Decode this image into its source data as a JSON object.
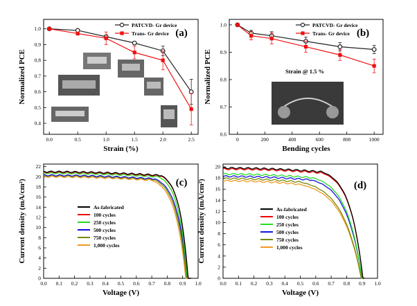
{
  "chart_data": [
    {
      "type": "line",
      "panel_label": "(a)",
      "xlabel": "Strain (%)",
      "ylabel": "Normalized PCE",
      "xlim": [
        -0.1,
        2.62
      ],
      "ylim": [
        0.33,
        1.06
      ],
      "xticks": [
        0.0,
        0.5,
        1.0,
        1.5,
        2.0,
        2.5
      ],
      "yticks": [
        0.4,
        0.5,
        0.6,
        0.7,
        0.8,
        0.9,
        1.0
      ],
      "x": [
        0.0,
        0.5,
        1.0,
        1.5,
        2.0,
        2.5
      ],
      "series": [
        {
          "name": "PATCVD- Gr device",
          "values": [
            1.0,
            0.99,
            0.95,
            0.91,
            0.86,
            0.6
          ],
          "errors": [
            0.0,
            0.005,
            0.01,
            0.01,
            0.03,
            0.08
          ],
          "color": "#222222",
          "marker": "circle-open"
        },
        {
          "name": "Trans- Gr device",
          "values": [
            1.0,
            0.97,
            0.94,
            0.85,
            0.8,
            0.49
          ],
          "errors": [
            0.0,
            0.01,
            0.04,
            0.04,
            0.06,
            0.1
          ],
          "color": "#ee1111",
          "marker": "square"
        }
      ],
      "legend": "top-right",
      "grid": false
    },
    {
      "type": "line",
      "panel_label": "(b)",
      "xlabel": "Bending cycles",
      "ylabel": "Normalized PCE",
      "xlim": [
        -60,
        1065
      ],
      "ylim": [
        0.6,
        1.02
      ],
      "xticks": [
        0,
        200,
        400,
        600,
        800,
        1000
      ],
      "yticks": [
        0.6,
        0.7,
        0.8,
        0.9,
        1.0
      ],
      "x": [
        0,
        100,
        250,
        500,
        750,
        1000
      ],
      "series": [
        {
          "name": "PATCVD- Gr device",
          "values": [
            1.0,
            0.97,
            0.96,
            0.94,
            0.92,
            0.91
          ],
          "errors": [
            0.0,
            0.01,
            0.015,
            0.015,
            0.015,
            0.015
          ],
          "color": "#222222",
          "marker": "circle-open"
        },
        {
          "name": "Trans- Gr device",
          "values": [
            1.0,
            0.96,
            0.95,
            0.92,
            0.89,
            0.85
          ],
          "errors": [
            0.0,
            0.015,
            0.02,
            0.02,
            0.02,
            0.025
          ],
          "color": "#ee1111",
          "marker": "square"
        }
      ],
      "annotation": "Strain @ 1.5 %",
      "legend": "top-right",
      "grid": false
    },
    {
      "type": "line",
      "panel_label": "(c)",
      "xlabel": "Voltage (V)",
      "ylabel": "Current density (mA/cm²)",
      "xlim": [
        0.0,
        1.0
      ],
      "ylim": [
        0,
        22.5
      ],
      "xticks": [
        0.0,
        0.1,
        0.2,
        0.3,
        0.4,
        0.5,
        0.6,
        0.7,
        0.8,
        0.9,
        1.0
      ],
      "yticks": [
        0,
        2,
        4,
        6,
        8,
        10,
        12,
        14,
        16,
        18,
        20,
        22
      ],
      "series": [
        {
          "name": "As-fabricated",
          "color": "#000000",
          "jsc": 21.0,
          "voc": 0.935,
          "knee": 0.76,
          "tail_slope": 10
        },
        {
          "name": "100 cycles",
          "color": "#ee0000",
          "jsc": 20.9,
          "voc": 0.935,
          "knee": 0.76,
          "tail_slope": 10
        },
        {
          "name": "250 cycles",
          "color": "#22dd22",
          "jsc": 20.7,
          "voc": 0.93,
          "knee": 0.745,
          "tail_slope": 12
        },
        {
          "name": "500 cycles",
          "color": "#1111dd",
          "jsc": 20.3,
          "voc": 0.93,
          "knee": 0.72,
          "tail_slope": 15
        },
        {
          "name": "750 cycles",
          "color": "#778800",
          "jsc": 20.2,
          "voc": 0.925,
          "knee": 0.71,
          "tail_slope": 16
        },
        {
          "name": "1,000 cycles",
          "color": "#ee9922",
          "jsc": 20.0,
          "voc": 0.92,
          "knee": 0.7,
          "tail_slope": 17
        }
      ],
      "legend": "center-left",
      "grid": false
    },
    {
      "type": "line",
      "panel_label": "(d)",
      "xlabel": "Voltage (V)",
      "ylabel": "Current density (mA/cm²)",
      "xlim": [
        0.0,
        1.0
      ],
      "ylim": [
        0,
        20.5
      ],
      "xticks": [
        0.0,
        0.1,
        0.2,
        0.3,
        0.4,
        0.5,
        0.6,
        0.7,
        0.8,
        0.9,
        1.0
      ],
      "yticks": [
        0,
        2,
        4,
        6,
        8,
        10,
        12,
        14,
        16,
        18,
        20
      ],
      "series": [
        {
          "name": "As-fabricated",
          "color": "#000000",
          "jsc": 19.8,
          "voc": 0.905,
          "knee": 0.64,
          "tail_slope": 18
        },
        {
          "name": "100 cycles",
          "color": "#ee0000",
          "jsc": 19.6,
          "voc": 0.905,
          "knee": 0.64,
          "tail_slope": 18
        },
        {
          "name": "250 cycles",
          "color": "#22dd22",
          "jsc": 18.7,
          "voc": 0.9,
          "knee": 0.58,
          "tail_slope": 22
        },
        {
          "name": "500 cycles",
          "color": "#1111dd",
          "jsc": 18.3,
          "voc": 0.9,
          "knee": 0.57,
          "tail_slope": 23
        },
        {
          "name": "750 cycles",
          "color": "#778800",
          "jsc": 17.9,
          "voc": 0.895,
          "knee": 0.5,
          "tail_slope": 25
        },
        {
          "name": "1,000 cycles",
          "color": "#ee9922",
          "jsc": 17.5,
          "voc": 0.895,
          "knee": 0.49,
          "tail_slope": 26
        }
      ],
      "legend": "center-left",
      "grid": false
    }
  ]
}
